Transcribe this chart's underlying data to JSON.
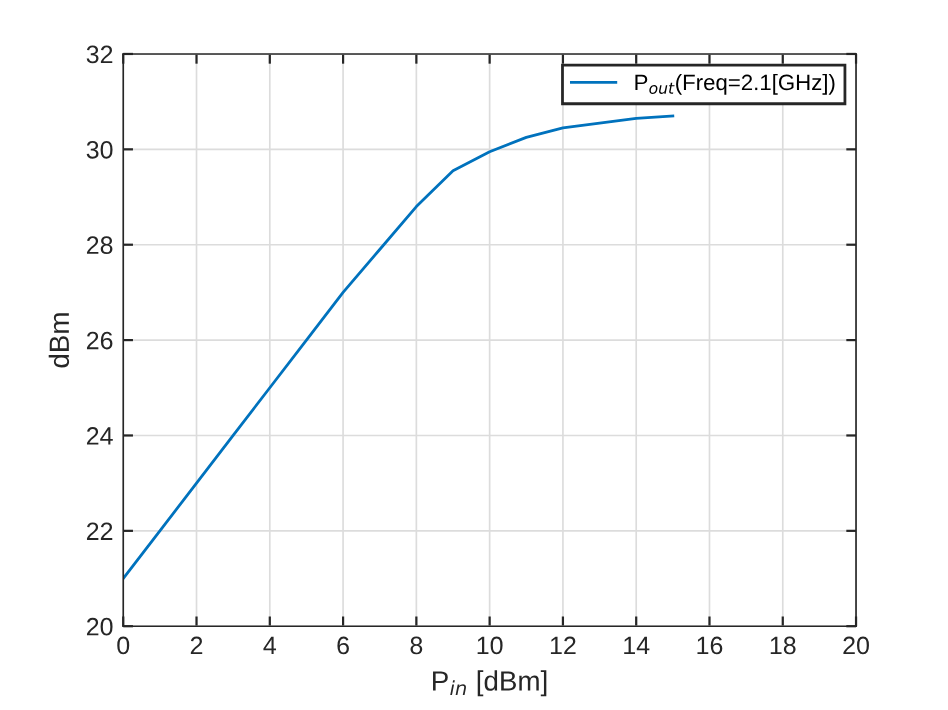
{
  "chart_data": {
    "type": "line",
    "xlabel": "P$_{in}$ [dBm]",
    "ylabel": "dBm",
    "x": [
      0,
      1,
      2,
      3,
      4,
      5,
      6,
      7,
      8,
      9,
      10,
      11,
      12,
      13,
      14,
      15
    ],
    "series": [
      {
        "name": "P$_{out}$(Freq=2.1[GHz])",
        "color": "#0072bd",
        "values": [
          21,
          22,
          23,
          24,
          25,
          26,
          27,
          27.9,
          28.8,
          29.55,
          29.95,
          30.25,
          30.45,
          30.55,
          30.65,
          30.7
        ]
      }
    ],
    "xlim": [
      0,
      20
    ],
    "ylim": [
      20,
      32
    ],
    "xticks": [
      0,
      2,
      4,
      6,
      8,
      10,
      12,
      14,
      16,
      18,
      20
    ],
    "yticks": [
      20,
      22,
      24,
      26,
      28,
      30,
      32
    ],
    "grid": true,
    "legend": "top right",
    "line_style": "solid",
    "marker": "none"
  }
}
